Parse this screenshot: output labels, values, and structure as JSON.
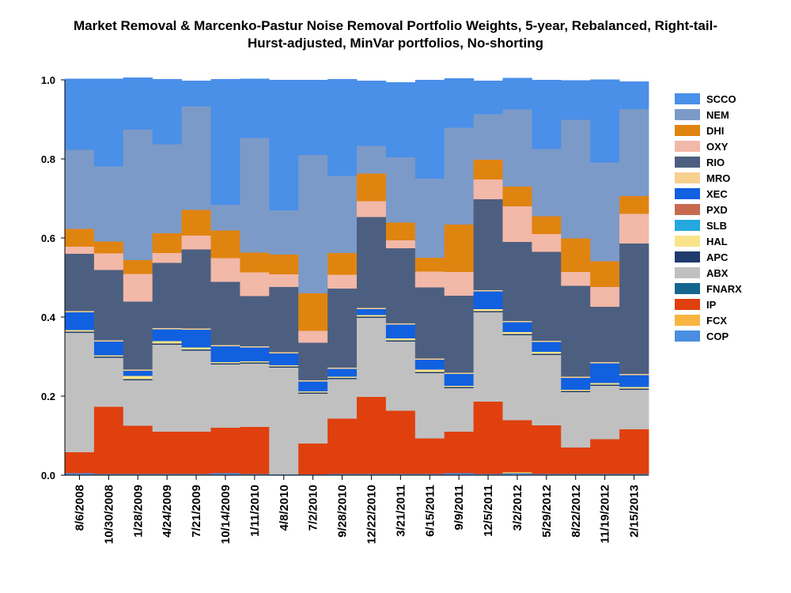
{
  "chart_data": {
    "type": "bar",
    "stacked": true,
    "title_lines": [
      "Market Removal & Marcenko-Pastur Noise Removal Portfolio Weights, 5-year, Rebalanced, Right-tail-",
      "Hurst-adjusted, MinVar portfolios, No-shorting"
    ],
    "ylim": [
      0,
      1
    ],
    "yticks": [
      "0.0",
      "0.2",
      "0.4",
      "0.6",
      "0.8",
      "1.0"
    ],
    "categories": [
      "8/6/2008",
      "10/30/2008",
      "1/28/2009",
      "4/24/2009",
      "7/21/2009",
      "10/14/2009",
      "1/11/2010",
      "4/8/2010",
      "7/2/2010",
      "9/28/2010",
      "12/22/2010",
      "3/21/2011",
      "6/15/2011",
      "9/9/2011",
      "12/5/2011",
      "3/2/2012",
      "5/29/2012",
      "8/22/2012",
      "11/19/2012",
      "2/15/2013"
    ],
    "series": [
      {
        "name": "COP",
        "color": "#4a8fe0",
        "values": [
          0.005,
          0.003,
          0.003,
          0.003,
          0.003,
          0.005,
          0.003,
          0.002,
          0.002,
          0.003,
          0.003,
          0.003,
          0.003,
          0.005,
          0.003,
          0.005,
          0.003,
          0.003,
          0.003,
          0.003
        ]
      },
      {
        "name": "FCX",
        "color": "#f8b440",
        "values": [
          0,
          0,
          0,
          0,
          0,
          0,
          0,
          0,
          0,
          0,
          0,
          0,
          0,
          0,
          0,
          0.003,
          0,
          0,
          0,
          0
        ]
      },
      {
        "name": "IP",
        "color": "#e0400e",
        "values": [
          0.053,
          0.17,
          0.122,
          0.107,
          0.107,
          0.115,
          0.119,
          0,
          0.078,
          0.14,
          0.195,
          0.16,
          0.09,
          0.105,
          0.183,
          0.131,
          0.123,
          0.067,
          0.088,
          0.113
        ]
      },
      {
        "name": "FNARX",
        "color": "#15668f",
        "values": [
          0,
          0,
          0,
          0,
          0,
          0,
          0,
          0,
          0,
          0,
          0,
          0,
          0,
          0,
          0,
          0,
          0,
          0,
          0,
          0
        ]
      },
      {
        "name": "ABX",
        "color": "#c0c0c0",
        "values": [
          0.302,
          0.124,
          0.115,
          0.22,
          0.205,
          0.16,
          0.16,
          0.27,
          0.126,
          0.1,
          0.2,
          0.175,
          0.165,
          0.11,
          0.226,
          0.215,
          0.178,
          0.14,
          0.135,
          0.1
        ]
      },
      {
        "name": "APC",
        "color": "#1f3b6e",
        "values": [
          0.003,
          0.003,
          0.003,
          0.003,
          0.003,
          0.003,
          0.003,
          0.003,
          0.003,
          0.003,
          0.003,
          0.003,
          0.003,
          0.003,
          0.003,
          0.003,
          0.003,
          0.003,
          0.003,
          0.003
        ]
      },
      {
        "name": "HAL",
        "color": "#fae48a",
        "values": [
          0.004,
          0.003,
          0.008,
          0.006,
          0.005,
          0.003,
          0.003,
          0.003,
          0.003,
          0.003,
          0.004,
          0.005,
          0.006,
          0.003,
          0.005,
          0.005,
          0.005,
          0.003,
          0.004,
          0.004
        ]
      },
      {
        "name": "SLB",
        "color": "#23a8e0",
        "values": [
          0,
          0,
          0,
          0,
          0,
          0,
          0,
          0,
          0,
          0,
          0,
          0,
          0,
          0,
          0,
          0,
          0,
          0,
          0,
          0
        ]
      },
      {
        "name": "PXD",
        "color": "#c86a50",
        "values": [
          0,
          0,
          0,
          0,
          0,
          0,
          0,
          0,
          0,
          0,
          0,
          0,
          0,
          0,
          0,
          0,
          0,
          0,
          0,
          0
        ]
      },
      {
        "name": "XEC",
        "color": "#1060e0",
        "values": [
          0.045,
          0.035,
          0.013,
          0.03,
          0.045,
          0.04,
          0.035,
          0.03,
          0.025,
          0.02,
          0.015,
          0.035,
          0.025,
          0.03,
          0.045,
          0.025,
          0.025,
          0.03,
          0.05,
          0.03
        ]
      },
      {
        "name": "MRO",
        "color": "#f8d090",
        "values": [
          0.003,
          0.003,
          0.003,
          0.003,
          0.003,
          0.003,
          0.003,
          0.003,
          0.003,
          0.003,
          0.003,
          0.003,
          0.003,
          0.003,
          0.003,
          0.003,
          0.003,
          0.003,
          0.003,
          0.003
        ]
      },
      {
        "name": "RIO",
        "color": "#4d5f80",
        "values": [
          0.145,
          0.178,
          0.172,
          0.165,
          0.2,
          0.16,
          0.127,
          0.165,
          0.095,
          0.2,
          0.23,
          0.19,
          0.18,
          0.195,
          0.23,
          0.2,
          0.225,
          0.23,
          0.14,
          0.33
        ]
      },
      {
        "name": "OXY",
        "color": "#f2b8a8",
        "values": [
          0.018,
          0.042,
          0.07,
          0.025,
          0.035,
          0.06,
          0.06,
          0.032,
          0.03,
          0.035,
          0.04,
          0.02,
          0.04,
          0.06,
          0.05,
          0.09,
          0.045,
          0.035,
          0.05,
          0.075
        ]
      },
      {
        "name": "DHI",
        "color": "#e08410",
        "values": [
          0.045,
          0.03,
          0.035,
          0.05,
          0.065,
          0.07,
          0.05,
          0.05,
          0.095,
          0.055,
          0.07,
          0.045,
          0.035,
          0.12,
          0.05,
          0.05,
          0.045,
          0.085,
          0.065,
          0.045
        ]
      },
      {
        "name": "NEM",
        "color": "#7c9ac8",
        "values": [
          0.2,
          0.19,
          0.33,
          0.225,
          0.262,
          0.065,
          0.29,
          0.112,
          0.35,
          0.195,
          0.07,
          0.165,
          0.2,
          0.245,
          0.115,
          0.195,
          0.17,
          0.3,
          0.25,
          0.22
        ]
      },
      {
        "name": "SCCO",
        "color": "#4a8fe8",
        "values": [
          0.18,
          0.222,
          0.132,
          0.165,
          0.065,
          0.318,
          0.15,
          0.33,
          0.19,
          0.245,
          0.165,
          0.19,
          0.25,
          0.125,
          0.085,
          0.08,
          0.175,
          0.1,
          0.21,
          0.07
        ]
      }
    ],
    "legend_order": [
      "SCCO",
      "NEM",
      "DHI",
      "OXY",
      "RIO",
      "MRO",
      "XEC",
      "PXD",
      "SLB",
      "HAL",
      "APC",
      "ABX",
      "FNARX",
      "IP",
      "FCX",
      "COP"
    ],
    "legend_position": "right"
  }
}
